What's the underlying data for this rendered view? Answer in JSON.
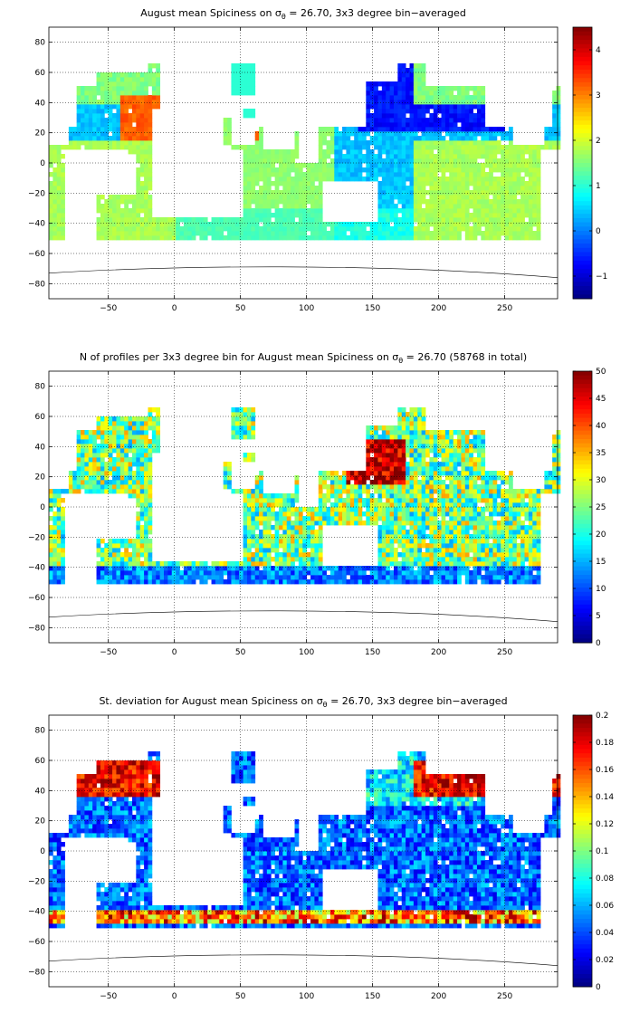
{
  "chart_data": [
    {
      "type": "heatmap",
      "title_parts": [
        "August mean Spiciness on ",
        "σ",
        "θ",
        " = 26.70, 3x3 degree bin−averaged"
      ],
      "xlabel": "",
      "ylabel": "",
      "xlim": [
        -95,
        290
      ],
      "ylim": [
        -90,
        90
      ],
      "xticks": [
        -50,
        0,
        50,
        100,
        150,
        200,
        250
      ],
      "xtick_labels": [
        "−50",
        "0",
        "50",
        "100",
        "150",
        "200",
        "250"
      ],
      "yticks": [
        80,
        60,
        40,
        20,
        0,
        -20,
        -40,
        -60,
        -80
      ],
      "ytick_labels": [
        "80",
        "60",
        "40",
        "20",
        "0",
        "−20",
        "−40",
        "−60",
        "−80"
      ],
      "grid": true,
      "colorbar": {
        "min": -1.5,
        "max": 4.5,
        "ticks": [
          4,
          3,
          2,
          1,
          0,
          -1
        ],
        "tick_labels": [
          "4",
          "3",
          "2",
          "1",
          "0",
          "−1"
        ],
        "colormap": "jet"
      }
    },
    {
      "type": "heatmap",
      "title_parts": [
        "N of profiles per 3x3 degree bin for August mean Spiciness on ",
        "σ",
        "θ",
        " = 26.70 (58768 in total)"
      ],
      "xlabel": "",
      "ylabel": "",
      "xlim": [
        -95,
        290
      ],
      "ylim": [
        -90,
        90
      ],
      "xticks": [
        -50,
        0,
        50,
        100,
        150,
        200,
        250
      ],
      "xtick_labels": [
        "−50",
        "0",
        "50",
        "100",
        "150",
        "200",
        "250"
      ],
      "yticks": [
        80,
        60,
        40,
        20,
        0,
        -20,
        -40,
        -60,
        -80
      ],
      "ytick_labels": [
        "80",
        "60",
        "40",
        "20",
        "0",
        "−20",
        "−40",
        "−60",
        "−80"
      ],
      "grid": true,
      "colorbar": {
        "min": 0,
        "max": 50,
        "ticks": [
          50,
          45,
          40,
          35,
          30,
          25,
          20,
          15,
          10,
          5,
          0
        ],
        "tick_labels": [
          "50",
          "45",
          "40",
          "35",
          "30",
          "25",
          "20",
          "15",
          "10",
          "5",
          "0"
        ],
        "colormap": "jet"
      }
    },
    {
      "type": "heatmap",
      "title_parts": [
        "St. deviation for August mean Spiciness on ",
        "σ",
        "θ",
        " = 26.70, 3x3 degree bin−averaged"
      ],
      "xlabel": "",
      "ylabel": "",
      "xlim": [
        -95,
        290
      ],
      "ylim": [
        -90,
        90
      ],
      "xticks": [
        -50,
        0,
        50,
        100,
        150,
        200,
        250
      ],
      "xtick_labels": [
        "−50",
        "0",
        "50",
        "100",
        "150",
        "200",
        "250"
      ],
      "yticks": [
        80,
        60,
        40,
        20,
        0,
        -20,
        -40,
        -60,
        -80
      ],
      "ytick_labels": [
        "80",
        "60",
        "40",
        "20",
        "0",
        "−20",
        "−40",
        "−60",
        "−80"
      ],
      "grid": true,
      "colorbar": {
        "min": 0,
        "max": 0.2,
        "ticks": [
          0.2,
          0.18,
          0.16,
          0.14,
          0.12,
          0.1,
          0.08,
          0.06,
          0.04,
          0.02,
          0
        ],
        "tick_labels": [
          "0.2",
          "0.18",
          "0.16",
          "0.14",
          "0.12",
          "0.1",
          "0.08",
          "0.06",
          "0.04",
          "0.02",
          "0"
        ],
        "colormap": "jet"
      }
    }
  ]
}
